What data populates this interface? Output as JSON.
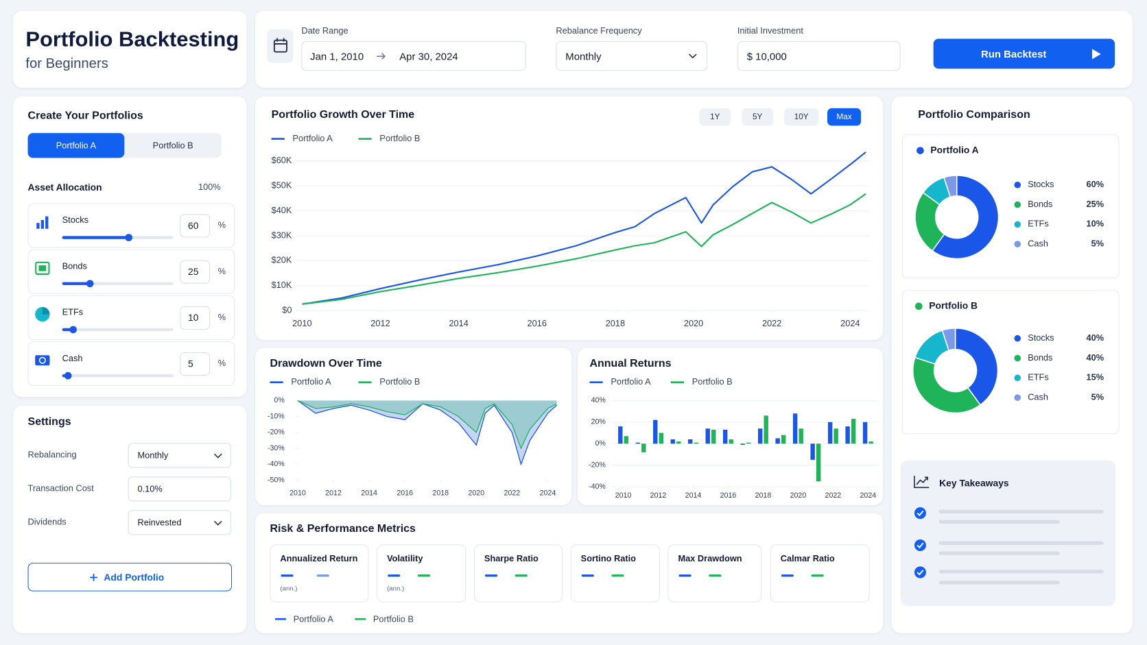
{
  "header": {
    "title": "Portfolio Backtesting",
    "subtitle": "for Beginners"
  },
  "controls": {
    "date_range_label": "Date Range",
    "start_date": "Jan 1, 2010",
    "end_date": "Apr 30, 2024",
    "rebalance_label": "Rebalance Frequency",
    "rebalance_value": "Monthly",
    "investment_label": "Initial Investment",
    "investment_value": "$ 10,000",
    "run_button": "Run Backtest"
  },
  "portfolios": {
    "title": "Create Your Portfolios",
    "tabs": [
      "Portfolio A",
      "Portfolio B"
    ],
    "allocation_label": "Asset Allocation",
    "allocation_total": "100%",
    "unit": "%",
    "assets": [
      {
        "name": "Stocks",
        "value": 60
      },
      {
        "name": "Bonds",
        "value": 25
      },
      {
        "name": "ETFs",
        "value": 10
      },
      {
        "name": "Cash",
        "value": 5
      }
    ]
  },
  "settings": {
    "title": "Settings",
    "rows": [
      {
        "label": "Rebalancing",
        "value": "Monthly"
      },
      {
        "label": "Transaction Cost",
        "value": "0.10%"
      },
      {
        "label": "Dividends",
        "value": "Reinvested"
      }
    ],
    "add_button": "Add Portfolio"
  },
  "metrics": {
    "title": "Risk & Performance Metrics",
    "cards": [
      {
        "name": "Annualized Return",
        "note": "(ann.)"
      },
      {
        "name": "Volatility",
        "note": "(ann.)"
      },
      {
        "name": "Sharpe Ratio"
      },
      {
        "name": "Sortino Ratio"
      },
      {
        "name": "Max Drawdown"
      },
      {
        "name": "Calmar Ratio"
      }
    ],
    "legend": [
      "Portfolio A",
      "Portfolio B"
    ]
  },
  "comparison": {
    "title": "Portfolio Comparison"
  },
  "takeaways": {
    "title": "Key Takeaways"
  },
  "chart_data": [
    {
      "type": "line",
      "title": "Portfolio Growth Over Time",
      "range_buttons": [
        "1Y",
        "5Y",
        "10Y",
        "Max"
      ],
      "legend": "top-left",
      "grid": true,
      "x": [
        2010,
        2011,
        2012,
        2013,
        2014,
        2015,
        2016,
        2017,
        2018,
        2018.5,
        2019,
        2019.8,
        2020.2,
        2020.5,
        2021,
        2021.5,
        2022,
        2022.5,
        2023,
        2023.5,
        2024,
        2024.4
      ],
      "series": [
        {
          "name": "Portfolio A",
          "color": "#1a56e8",
          "values": [
            2600,
            5000,
            8800,
            12300,
            15500,
            18400,
            21900,
            26000,
            31300,
            33600,
            38900,
            45300,
            35100,
            42400,
            49700,
            55600,
            57600,
            52600,
            46800,
            52600,
            58500,
            63500
          ]
        },
        {
          "name": "Portfolio B",
          "color": "#1fb35a",
          "values": [
            2600,
            4500,
            7600,
            10200,
            12900,
            15200,
            17800,
            20800,
            24300,
            26000,
            27200,
            31600,
            25700,
            30400,
            34500,
            38900,
            43300,
            39500,
            35100,
            38600,
            42400,
            46800
          ]
        }
      ],
      "xlim": [
        2010,
        2024.5
      ],
      "xticks": [
        2010,
        2012,
        2014,
        2016,
        2018,
        2020,
        2022,
        2024
      ],
      "ylim": [
        0,
        65000
      ],
      "yticks": [
        {
          "value": 0,
          "label": "$0"
        },
        {
          "value": 10000,
          "label": "$10K"
        },
        {
          "value": 20000,
          "label": "$20K"
        },
        {
          "value": 30000,
          "label": "$30K"
        },
        {
          "value": 40000,
          "label": "$40K"
        },
        {
          "value": 50000,
          "label": "$50K"
        },
        {
          "value": 60000,
          "label": "$60K"
        }
      ]
    },
    {
      "type": "area",
      "title": "Drawdown Over Time",
      "legend": "top-left",
      "grid": false,
      "x": [
        2010,
        2011,
        2012,
        2013,
        2014,
        2015,
        2016,
        2017,
        2018,
        2019,
        2020,
        2020.5,
        2021,
        2022,
        2022.5,
        2023,
        2024,
        2024.5
      ],
      "series": [
        {
          "name": "Portfolio A",
          "color": "#1a56e8",
          "values": [
            0,
            -8,
            -5,
            -3,
            -6,
            -10,
            -12,
            -2,
            -6,
            -14,
            -28,
            -8,
            -3,
            -20,
            -40,
            -25,
            -8,
            -3
          ]
        },
        {
          "name": "Portfolio B",
          "color": "#1fb35a",
          "values": [
            0,
            -5,
            -4,
            -2,
            -4,
            -7,
            -9,
            -2,
            -4,
            -10,
            -20,
            -5,
            -2,
            -15,
            -30,
            -18,
            -5,
            -2
          ]
        }
      ],
      "xlim": [
        2010,
        2024.5
      ],
      "xticks": [
        2010,
        2012,
        2014,
        2016,
        2018,
        2020,
        2022,
        2024
      ],
      "ylim": [
        -50,
        0
      ],
      "yticks": [
        {
          "value": 0,
          "label": "0%"
        },
        {
          "value": -10,
          "label": "-10%"
        },
        {
          "value": -20,
          "label": "-20%"
        },
        {
          "value": -30,
          "label": "-30%"
        },
        {
          "value": -40,
          "label": "-40%"
        },
        {
          "value": -50,
          "label": "-50%"
        }
      ]
    },
    {
      "type": "bar",
      "title": "Annual Returns",
      "legend": "top-left",
      "grid": true,
      "x": [
        2010,
        2011,
        2012,
        2013,
        2014,
        2015,
        2016,
        2017,
        2018,
        2019,
        2020,
        2021,
        2022,
        2023,
        2024
      ],
      "series": [
        {
          "name": "Portfolio A",
          "color": "#1a56e8",
          "values": [
            16,
            1,
            22,
            4,
            4,
            14,
            13,
            -1,
            14,
            5,
            28,
            -15,
            20,
            16,
            20
          ]
        },
        {
          "name": "Portfolio B",
          "color": "#1fb35a",
          "values": [
            7,
            -8,
            10,
            2,
            1,
            13,
            4,
            1,
            26,
            8,
            14,
            -35,
            14,
            23,
            2
          ]
        }
      ],
      "xlim": [
        2009.4,
        2024.6
      ],
      "xticks": [
        2010,
        2012,
        2014,
        2016,
        2018,
        2020,
        2022,
        2024
      ],
      "ylim": [
        -40,
        40
      ],
      "yticks": [
        {
          "value": 40,
          "label": "40%"
        },
        {
          "value": 20,
          "label": "20%"
        },
        {
          "value": 0,
          "label": "0%"
        },
        {
          "value": -20,
          "label": "-20%"
        },
        {
          "value": -40,
          "label": "-40%"
        }
      ]
    },
    {
      "type": "pie",
      "title": "Portfolio A",
      "color": "#1a56e8",
      "categories": [
        "Stocks",
        "Bonds",
        "ETFs",
        "Cash"
      ],
      "values": [
        60,
        25,
        10,
        5
      ],
      "value_labels": [
        "60%",
        "25%",
        "10%",
        "5%"
      ],
      "colors": [
        "#1a56e8",
        "#1fb35a",
        "#16b6cc",
        "#7a9ae8"
      ]
    },
    {
      "type": "pie",
      "title": "Portfolio B",
      "color": "#1fb35a",
      "categories": [
        "Stocks",
        "Bonds",
        "ETFs",
        "Cash"
      ],
      "values": [
        40,
        40,
        15,
        5
      ],
      "value_labels": [
        "40%",
        "40%",
        "15%",
        "5%"
      ],
      "colors": [
        "#1a56e8",
        "#1fb35a",
        "#16b6cc",
        "#7a9ae8"
      ]
    }
  ]
}
